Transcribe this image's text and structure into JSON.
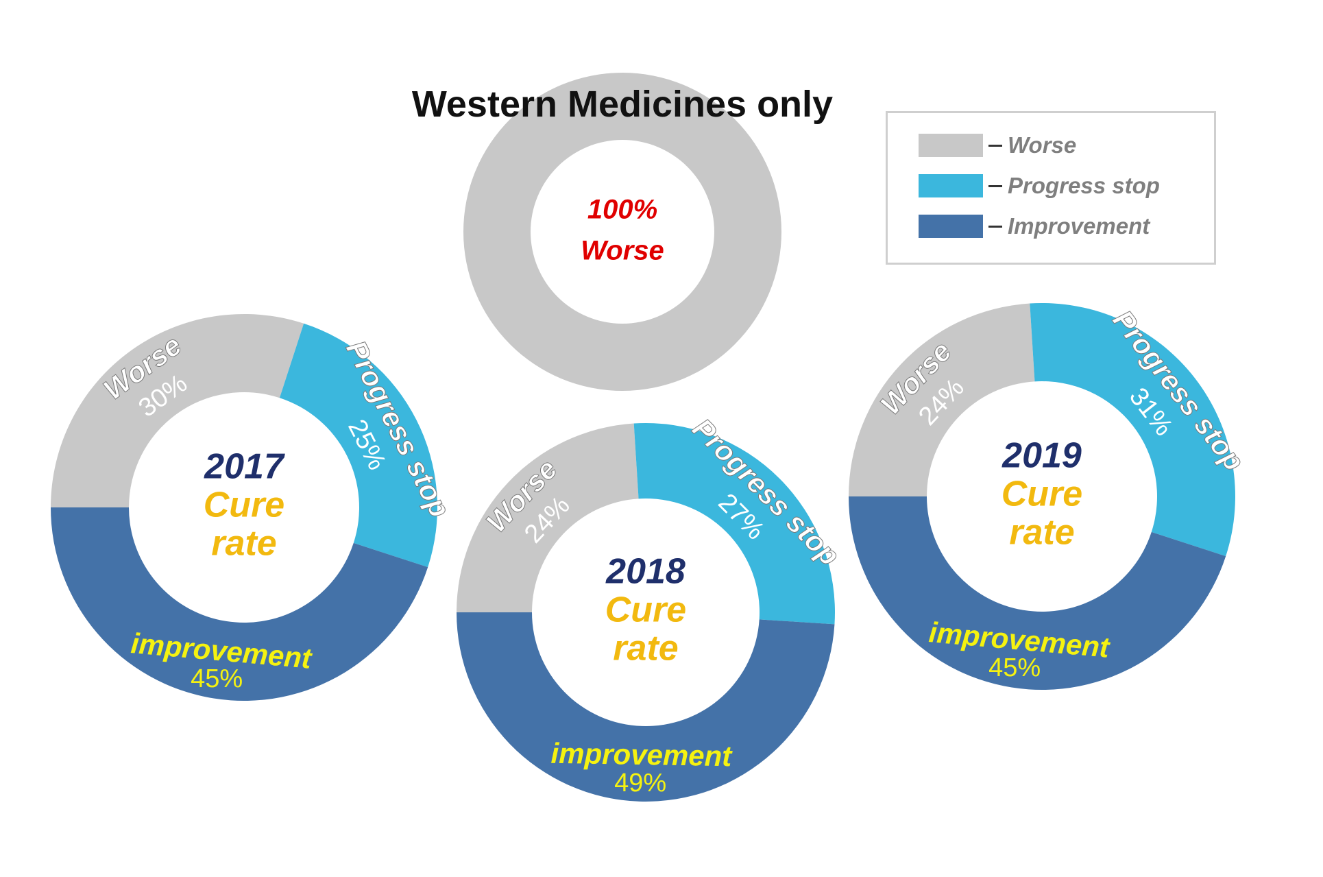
{
  "chart_data": {
    "type": "pie",
    "title": "Western Medicines only",
    "categories": [
      "Worse",
      "Progress stop",
      "Improvement"
    ],
    "colors": {
      "Worse": "#c8c8c8",
      "Progress stop": "#3bb7dd",
      "Improvement": "#4472a8"
    },
    "legend": {
      "position": "top-right",
      "items": [
        {
          "label": "Worse",
          "color": "#c8c8c8"
        },
        {
          "label": "Progress stop",
          "color": "#3bb7dd"
        },
        {
          "label": "Improvement",
          "color": "#4472a8"
        }
      ]
    },
    "charts": [
      {
        "id": "western",
        "center_lines": [
          {
            "text": "100%",
            "color": "#e00000"
          },
          {
            "text": "Worse",
            "color": "#e00000"
          }
        ],
        "slices": [
          {
            "category": "Worse",
            "value": 100
          }
        ]
      },
      {
        "id": "2017",
        "center_lines": [
          {
            "text": "2017",
            "color": "#1f2f6b"
          },
          {
            "text": "Cure",
            "color": "#f2b90f"
          },
          {
            "text": "rate",
            "color": "#f2b90f"
          }
        ],
        "slices": [
          {
            "category": "Worse",
            "label": "Worse",
            "value": 30,
            "value_text": "30%"
          },
          {
            "category": "Progress stop",
            "label": "Progress stop",
            "value": 25,
            "value_text": "25%"
          },
          {
            "category": "Improvement",
            "label": "improvement",
            "value": 45,
            "value_text": "45%"
          }
        ]
      },
      {
        "id": "2018",
        "center_lines": [
          {
            "text": "2018",
            "color": "#1f2f6b"
          },
          {
            "text": "Cure",
            "color": "#f2b90f"
          },
          {
            "text": "rate",
            "color": "#f2b90f"
          }
        ],
        "slices": [
          {
            "category": "Worse",
            "label": "Worse",
            "value": 24,
            "value_text": "24%"
          },
          {
            "category": "Progress stop",
            "label": "Progress stop",
            "value": 27,
            "value_text": "27%"
          },
          {
            "category": "Improvement",
            "label": "improvement",
            "value": 49,
            "value_text": "49%"
          }
        ]
      },
      {
        "id": "2019",
        "center_lines": [
          {
            "text": "2019",
            "color": "#1f2f6b"
          },
          {
            "text": "Cure",
            "color": "#f2b90f"
          },
          {
            "text": "rate",
            "color": "#f2b90f"
          }
        ],
        "slices": [
          {
            "category": "Worse",
            "label": "Worse",
            "value": 24,
            "value_text": "24%"
          },
          {
            "category": "Progress stop",
            "label": "Progress stop",
            "value": 31,
            "value_text": "31%"
          },
          {
            "category": "Improvement",
            "label": "improvement",
            "value": 45,
            "value_text": "45%"
          }
        ]
      }
    ]
  }
}
